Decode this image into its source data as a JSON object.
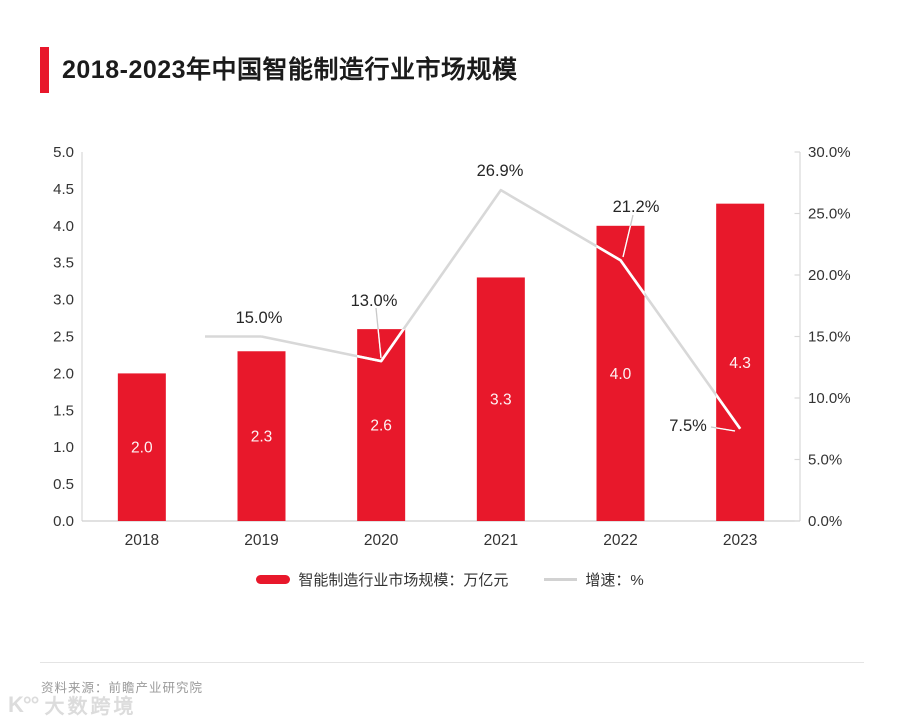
{
  "header": {
    "title": "2018-2023年中国智能制造行业市场规模"
  },
  "chart_data": {
    "type": "bar+line combo",
    "categories": [
      "2018",
      "2019",
      "2020",
      "2021",
      "2022",
      "2023"
    ],
    "series": [
      {
        "name": "智能制造行业市场规模：万亿元",
        "type": "bar",
        "axis": "left",
        "values": [
          2.0,
          2.3,
          2.6,
          3.3,
          4.0,
          4.3
        ],
        "labels": [
          "2.0",
          "2.3",
          "2.6",
          "3.3",
          "4.0",
          "4.3"
        ]
      },
      {
        "name": "增速：%",
        "type": "line",
        "axis": "right",
        "values": [
          null,
          15.0,
          13.0,
          26.9,
          21.2,
          7.5
        ],
        "labels": [
          null,
          "15.0%",
          "13.0%",
          "26.9%",
          "21.2%",
          "7.5%"
        ]
      }
    ],
    "left_axis": {
      "min": 0,
      "max": 5,
      "ticks": [
        "0.0",
        "0.5",
        "1.0",
        "1.5",
        "2.0",
        "2.5",
        "3.0",
        "3.5",
        "4.0",
        "4.5",
        "5.0"
      ]
    },
    "right_axis": {
      "min": 0,
      "max": 30,
      "ticks": [
        "0.0%",
        "5.0%",
        "10.0%",
        "15.0%",
        "20.0%",
        "25.0%",
        "30.0%"
      ]
    },
    "colors": {
      "bar": "#e8182b",
      "line": "#d8d8d8",
      "leader": "#c9c9c9",
      "axis": "#d9d9d9",
      "axis_text": "#333333",
      "callout_text": "#262626",
      "bar_label_text": "#ffffff"
    },
    "legend_position": "bottom-center",
    "grid": "off"
  },
  "footer": {
    "source": "资料来源：前瞻产业研究院",
    "watermark_logo": "K°°",
    "watermark_text": "大数跨境"
  }
}
